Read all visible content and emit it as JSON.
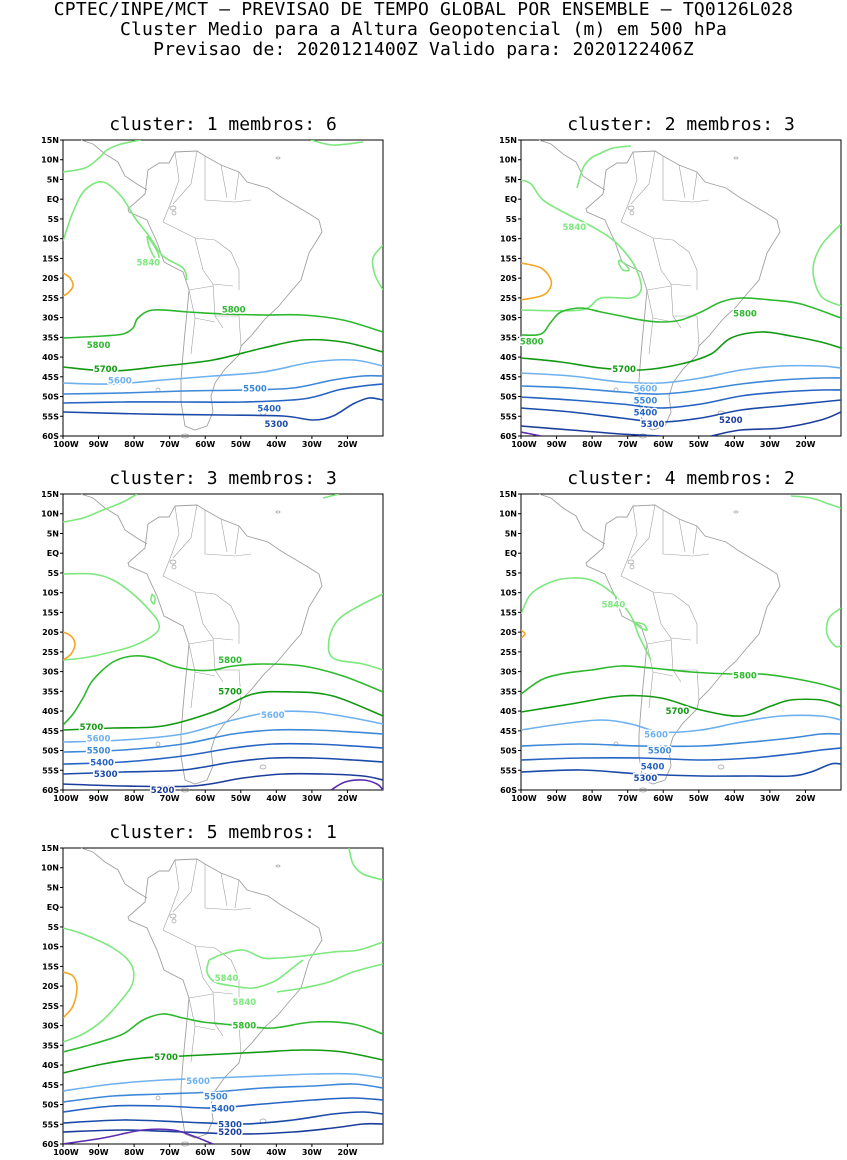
{
  "header": {
    "line1": "CPTEC/INPE/MCT – PREVISAO DE TEMPO GLOBAL POR ENSEMBLE – TQ0126L028",
    "line2": "Cluster Medio para a Altura Geopotencial (m) em 500 hPa",
    "line3": "Previsao de: 2020121400Z    Valido para: 2020122406Z"
  },
  "axes": {
    "lat_labels": [
      "15N",
      "10N",
      "5N",
      "EQ",
      "5S",
      "10S",
      "15S",
      "20S",
      "25S",
      "30S",
      "35S",
      "40S",
      "45S",
      "50S",
      "55S",
      "60S"
    ],
    "lon_labels": [
      "100W",
      "90W",
      "80W",
      "70W",
      "60W",
      "50W",
      "40W",
      "30W",
      "20W"
    ]
  },
  "colors": {
    "c5840": "#7de87d",
    "c5800": "#2eb82e",
    "c5700": "#129912",
    "c5600": "#6fb1ee",
    "c5500": "#3d88d8",
    "c5400": "#2663c2",
    "c5300": "#1a4aa8",
    "c5200": "#1c3c9c",
    "c5100": "#5a2cb0",
    "warm": "#f5a623",
    "coast": "#a0a0a0"
  },
  "panels": [
    {
      "title": "cluster: 1   membros: 6",
      "contours": [
        {
          "level": "5840",
          "labels": [
            {
              "text": "5840",
              "lon": -76,
              "lat": -16
            }
          ]
        },
        {
          "level": "5800",
          "labels": [
            {
              "text": "5800",
              "lon": -52,
              "lat": -28
            },
            {
              "text": "5800",
              "lon": -90,
              "lat": -37
            }
          ]
        },
        {
          "level": "5700",
          "labels": [
            {
              "text": "5700",
              "lon": -88,
              "lat": -43
            }
          ]
        },
        {
          "level": "5600",
          "labels": [
            {
              "text": "5600",
              "lon": -84,
              "lat": -46
            }
          ]
        },
        {
          "level": "5500",
          "labels": [
            {
              "text": "5500",
              "lon": -46,
              "lat": -48
            }
          ]
        },
        {
          "level": "5400",
          "labels": [
            {
              "text": "5400",
              "lon": -42,
              "lat": -53
            }
          ]
        },
        {
          "level": "5300",
          "labels": [
            {
              "text": "5300",
              "lon": -40,
              "lat": -57
            }
          ]
        }
      ]
    },
    {
      "title": "cluster: 2   membros: 3",
      "contours": [
        {
          "level": "5840",
          "labels": [
            {
              "text": "5840",
              "lon": -85,
              "lat": -7
            }
          ]
        },
        {
          "level": "5800",
          "labels": [
            {
              "text": "5800",
              "lon": -37,
              "lat": -29
            },
            {
              "text": "5800",
              "lon": -97,
              "lat": -36
            }
          ]
        },
        {
          "level": "5700",
          "labels": [
            {
              "text": "5700",
              "lon": -71,
              "lat": -43
            }
          ]
        },
        {
          "level": "5600",
          "labels": [
            {
              "text": "5600",
              "lon": -65,
              "lat": -48
            }
          ]
        },
        {
          "level": "5500",
          "labels": [
            {
              "text": "5500",
              "lon": -65,
              "lat": -51
            }
          ]
        },
        {
          "level": "5400",
          "labels": [
            {
              "text": "5400",
              "lon": -65,
              "lat": -54
            }
          ]
        },
        {
          "level": "5300",
          "labels": [
            {
              "text": "5300",
              "lon": -63,
              "lat": -57
            }
          ]
        },
        {
          "level": "5200",
          "labels": [
            {
              "text": "5200",
              "lon": -41,
              "lat": -56
            }
          ]
        }
      ]
    },
    {
      "title": "cluster: 3   membros: 3",
      "contours": [
        {
          "level": "5800",
          "labels": [
            {
              "text": "5800",
              "lon": -53,
              "lat": -27
            }
          ]
        },
        {
          "level": "5700",
          "labels": [
            {
              "text": "5700",
              "lon": -53,
              "lat": -35
            },
            {
              "text": "5700",
              "lon": -92,
              "lat": -44
            }
          ]
        },
        {
          "level": "5600",
          "labels": [
            {
              "text": "5600",
              "lon": -41,
              "lat": -41
            },
            {
              "text": "5600",
              "lon": -90,
              "lat": -47
            }
          ]
        },
        {
          "level": "5500",
          "labels": [
            {
              "text": "5500",
              "lon": -90,
              "lat": -50
            }
          ]
        },
        {
          "level": "5400",
          "labels": [
            {
              "text": "5400",
              "lon": -89,
              "lat": -53
            }
          ]
        },
        {
          "level": "5300",
          "labels": [
            {
              "text": "5300",
              "lon": -88,
              "lat": -56
            }
          ]
        },
        {
          "level": "5200",
          "labels": [
            {
              "text": "5200",
              "lon": -72,
              "lat": -60
            }
          ]
        }
      ]
    },
    {
      "title": "cluster: 4   membros: 2",
      "contours": [
        {
          "level": "5840",
          "labels": [
            {
              "text": "5840",
              "lon": -74,
              "lat": -13
            }
          ]
        },
        {
          "level": "5800",
          "labels": [
            {
              "text": "5800",
              "lon": -37,
              "lat": -31
            }
          ]
        },
        {
          "level": "5700",
          "labels": [
            {
              "text": "5700",
              "lon": -56,
              "lat": -40
            }
          ]
        },
        {
          "level": "5600",
          "labels": [
            {
              "text": "5600",
              "lon": -62,
              "lat": -46
            }
          ]
        },
        {
          "level": "5500",
          "labels": [
            {
              "text": "5500",
              "lon": -61,
              "lat": -50
            }
          ]
        },
        {
          "level": "5400",
          "labels": [
            {
              "text": "5400",
              "lon": -63,
              "lat": -54
            }
          ]
        },
        {
          "level": "5300",
          "labels": [
            {
              "text": "5300",
              "lon": -65,
              "lat": -57
            }
          ]
        }
      ]
    },
    {
      "title": "cluster: 5   membros: 1",
      "contours": [
        {
          "level": "5840",
          "labels": [
            {
              "text": "5840",
              "lon": -54,
              "lat": -18
            },
            {
              "text": "5840",
              "lon": -49,
              "lat": -24
            }
          ]
        },
        {
          "level": "5800",
          "labels": [
            {
              "text": "5800",
              "lon": -49,
              "lat": -30
            }
          ]
        },
        {
          "level": "5700",
          "labels": [
            {
              "text": "5700",
              "lon": -71,
              "lat": -38
            }
          ]
        },
        {
          "level": "5600",
          "labels": [
            {
              "text": "5600",
              "lon": -62,
              "lat": -44
            }
          ]
        },
        {
          "level": "5500",
          "labels": [
            {
              "text": "5500",
              "lon": -57,
              "lat": -48
            }
          ]
        },
        {
          "level": "5400",
          "labels": [
            {
              "text": "5400",
              "lon": -55,
              "lat": -51
            }
          ]
        },
        {
          "level": "5300",
          "labels": [
            {
              "text": "5300",
              "lon": -53,
              "lat": -55
            }
          ]
        },
        {
          "level": "5200",
          "labels": [
            {
              "text": "5200",
              "lon": -53,
              "lat": -57
            }
          ]
        }
      ]
    }
  ]
}
